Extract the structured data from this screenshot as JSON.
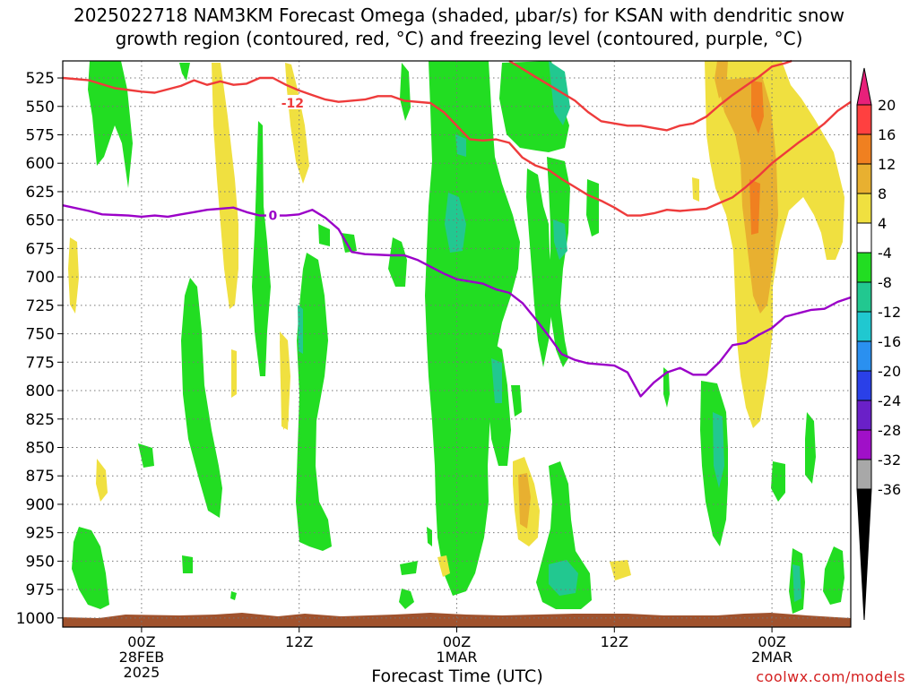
{
  "title_line1": "2025022718 NAM3KM Forecast Omega (shaded, μbar/s) for KSAN with dendritic snow",
  "title_line2": "growth region (contoured, red, °C) and freezing level (contoured, purple, °C)",
  "credit": "coolwx.com/models",
  "colors": {
    "credit": "#d42020",
    "terrain": "#a0522d",
    "dgz_line": "#ee3b3b",
    "freezing_line": "#9b00c8"
  },
  "chart_data": {
    "type": "time-height cross section",
    "title": "2025022718 NAM3KM Forecast Omega (shaded, μbar/s) for KSAN with dendritic snow growth region (contoured, red, °C) and freezing level (contoured, purple, °C)",
    "xlabel": "Forecast Time (UTC)",
    "ylabel": "",
    "y_scale": "pressure (hPa), reversed",
    "ylim": [
      1008,
      510
    ],
    "x_range_hours": [
      -6,
      54
    ],
    "grid": true,
    "y_ticks": [
      525,
      550,
      575,
      600,
      625,
      650,
      675,
      700,
      725,
      750,
      775,
      800,
      825,
      850,
      875,
      900,
      925,
      950,
      975,
      1000
    ],
    "x_ticks": [
      {
        "hour": 0,
        "label": "00Z",
        "sub1": "28FEB",
        "sub2": "2025"
      },
      {
        "hour": 12,
        "label": "12Z",
        "sub1": "",
        "sub2": ""
      },
      {
        "hour": 24,
        "label": "00Z",
        "sub1": "1MAR",
        "sub2": ""
      },
      {
        "hour": 36,
        "label": "12Z",
        "sub1": "",
        "sub2": ""
      },
      {
        "hour": 48,
        "label": "00Z",
        "sub1": "2MAR",
        "sub2": ""
      }
    ],
    "colorbar": {
      "labels": [
        "20",
        "16",
        "12",
        "8",
        "4",
        "-4",
        "-8",
        "-12",
        "-16",
        "-20",
        "-24",
        "-28",
        "-32",
        "-36"
      ],
      "bins": [
        {
          "range": [
            16,
            20
          ],
          "color": "#ff4040"
        },
        {
          "range": [
            12,
            16
          ],
          "color": "#f08020"
        },
        {
          "range": [
            8,
            12
          ],
          "color": "#e8b030"
        },
        {
          "range": [
            4,
            8
          ],
          "color": "#f0e040"
        },
        {
          "range": [
            -4,
            4
          ],
          "color": "#ffffff"
        },
        {
          "range": [
            -8,
            -4
          ],
          "color": "#22dd22"
        },
        {
          "range": [
            -12,
            -8
          ],
          "color": "#22c890"
        },
        {
          "range": [
            -16,
            -12
          ],
          "color": "#20c8d0"
        },
        {
          "range": [
            -20,
            -16
          ],
          "color": "#2a90f0"
        },
        {
          "range": [
            -24,
            -20
          ],
          "color": "#2a40e8"
        },
        {
          "range": [
            -28,
            -24
          ],
          "color": "#6a20c8"
        },
        {
          "range": [
            -32,
            -28
          ],
          "color": "#a010c8"
        },
        {
          "range": [
            -36,
            -32
          ],
          "color": "#a8a8a8"
        }
      ],
      "above_color": "#e8207a",
      "below_color": "#000000"
    },
    "contours": [
      {
        "name": "-12",
        "label": "-12",
        "color": "#ee3b3b",
        "label_at": {
          "hour": 11.5,
          "p": 547
        },
        "points": [
          [
            -6,
            525
          ],
          [
            -4,
            527
          ],
          [
            -2,
            534
          ],
          [
            0,
            537
          ],
          [
            1,
            538
          ],
          [
            3,
            532
          ],
          [
            4,
            527
          ],
          [
            5,
            531
          ],
          [
            6,
            528
          ],
          [
            7,
            531
          ],
          [
            8,
            530
          ],
          [
            9,
            525
          ],
          [
            10,
            525
          ],
          [
            11,
            531
          ],
          [
            12,
            536
          ],
          [
            13,
            540
          ],
          [
            14,
            544
          ],
          [
            15,
            546
          ],
          [
            17,
            544
          ],
          [
            18,
            541
          ],
          [
            19,
            541
          ],
          [
            20,
            545
          ],
          [
            22,
            547
          ],
          [
            23,
            555
          ],
          [
            24,
            567
          ],
          [
            25,
            579
          ],
          [
            26,
            580
          ],
          [
            27,
            579
          ],
          [
            28,
            582
          ],
          [
            29,
            595
          ],
          [
            30,
            602
          ],
          [
            31,
            606
          ],
          [
            32,
            614
          ],
          [
            33,
            621
          ],
          [
            34,
            628
          ],
          [
            35,
            633
          ],
          [
            36,
            639
          ],
          [
            37,
            646
          ],
          [
            38,
            646
          ],
          [
            39,
            644
          ],
          [
            40,
            641
          ],
          [
            41,
            642
          ],
          [
            42,
            641
          ],
          [
            43,
            640
          ],
          [
            44,
            635
          ],
          [
            45,
            630
          ],
          [
            46,
            621
          ],
          [
            47,
            611
          ],
          [
            48,
            600
          ],
          [
            49,
            591
          ],
          [
            50,
            582
          ],
          [
            51,
            574
          ],
          [
            52,
            565
          ],
          [
            53,
            554
          ],
          [
            54,
            546
          ]
        ]
      },
      {
        "name": "-12 (second branch)",
        "label": "",
        "color": "#ee3b3b",
        "points": [
          [
            28,
            510
          ],
          [
            29,
            517
          ],
          [
            30,
            524
          ],
          [
            31,
            531
          ],
          [
            32,
            538
          ],
          [
            33,
            545
          ],
          [
            34,
            555
          ],
          [
            35,
            563
          ],
          [
            36,
            565
          ],
          [
            37,
            567
          ],
          [
            38,
            567
          ],
          [
            39,
            569
          ],
          [
            40,
            571
          ],
          [
            41,
            567
          ],
          [
            42,
            565
          ],
          [
            43,
            559
          ],
          [
            44,
            549
          ],
          [
            45,
            540
          ],
          [
            46,
            532
          ],
          [
            47,
            524
          ],
          [
            48,
            515
          ],
          [
            49,
            512
          ],
          [
            49.5,
            510
          ]
        ]
      },
      {
        "name": "0",
        "label": "0",
        "color": "#9b00c8",
        "label_at": {
          "hour": 10,
          "p": 646
        },
        "points": [
          [
            -6,
            637
          ],
          [
            -4,
            642
          ],
          [
            -3,
            645
          ],
          [
            -1,
            646
          ],
          [
            0,
            647
          ],
          [
            1,
            646
          ],
          [
            2,
            647
          ],
          [
            3,
            645
          ],
          [
            4,
            643
          ],
          [
            5,
            641
          ],
          [
            6,
            640
          ],
          [
            7,
            639
          ],
          [
            8,
            643
          ],
          [
            9,
            646
          ],
          [
            11,
            646
          ],
          [
            12,
            645
          ],
          [
            13,
            641
          ],
          [
            14,
            648
          ],
          [
            15,
            658
          ],
          [
            16,
            678
          ],
          [
            17,
            680
          ],
          [
            19,
            681
          ],
          [
            20,
            681
          ],
          [
            21,
            685
          ],
          [
            22,
            691
          ],
          [
            23,
            697
          ],
          [
            24,
            702
          ],
          [
            25,
            704
          ],
          [
            26,
            706
          ],
          [
            27,
            711
          ],
          [
            28,
            714
          ],
          [
            29,
            723
          ],
          [
            30,
            737
          ],
          [
            31,
            752
          ],
          [
            32,
            768
          ],
          [
            33,
            773
          ],
          [
            34,
            776
          ],
          [
            35,
            777
          ],
          [
            36,
            778
          ],
          [
            37,
            784
          ],
          [
            38,
            805
          ],
          [
            39,
            793
          ],
          [
            40,
            784
          ],
          [
            41,
            780
          ],
          [
            42,
            786
          ],
          [
            43,
            786
          ],
          [
            44,
            775
          ],
          [
            45,
            760
          ],
          [
            46,
            758
          ],
          [
            47,
            751
          ],
          [
            48,
            745
          ],
          [
            49,
            735
          ],
          [
            50,
            732
          ],
          [
            51,
            729
          ],
          [
            52,
            728
          ],
          [
            53,
            722
          ],
          [
            54,
            718
          ]
        ]
      }
    ]
  }
}
